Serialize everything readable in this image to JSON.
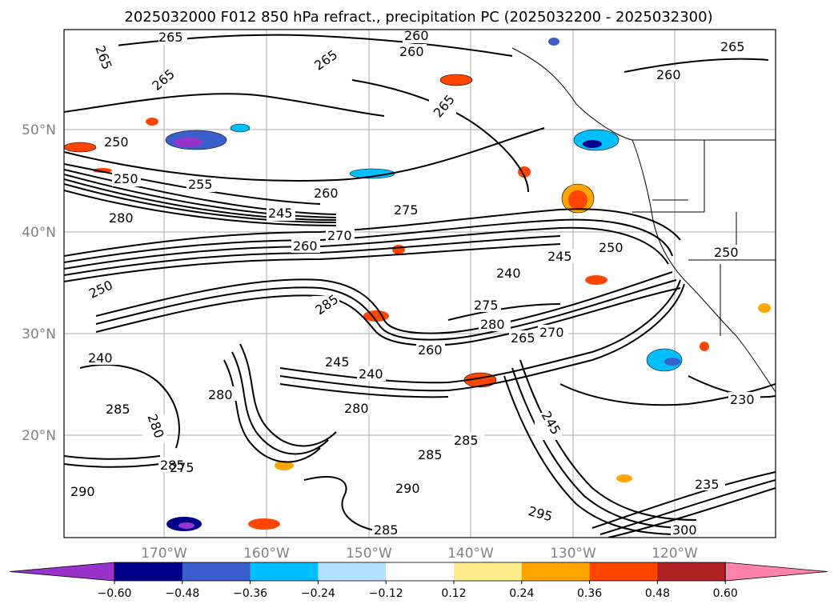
{
  "title": "2025032000 F012 850 hPa refract., precipitation PC (2025032200 - 2025032300)",
  "map": {
    "lon_labels": [
      "170°W",
      "160°W",
      "150°W",
      "140°W",
      "130°W",
      "120°W"
    ],
    "lat_labels": [
      "50°N",
      "40°N",
      "30°N",
      "20°N"
    ],
    "grid": true,
    "contour_labels": [
      {
        "text": "265"
      },
      {
        "text": "260"
      },
      {
        "text": "265"
      },
      {
        "text": "265"
      },
      {
        "text": "260"
      },
      {
        "text": "265"
      },
      {
        "text": "265"
      },
      {
        "text": "260"
      },
      {
        "text": "265"
      },
      {
        "text": "250"
      },
      {
        "text": "250"
      },
      {
        "text": "255"
      },
      {
        "text": "260"
      },
      {
        "text": "245"
      },
      {
        "text": "275"
      },
      {
        "text": "280"
      },
      {
        "text": "270"
      },
      {
        "text": "260"
      },
      {
        "text": "245"
      },
      {
        "text": "250"
      },
      {
        "text": "240"
      },
      {
        "text": "250"
      },
      {
        "text": "250"
      },
      {
        "text": "275"
      },
      {
        "text": "280"
      },
      {
        "text": "285"
      },
      {
        "text": "285"
      },
      {
        "text": "280"
      },
      {
        "text": "240"
      },
      {
        "text": "260"
      },
      {
        "text": "245"
      },
      {
        "text": "265"
      },
      {
        "text": "270"
      },
      {
        "text": "240"
      },
      {
        "text": "280"
      },
      {
        "text": "280"
      },
      {
        "text": "285"
      },
      {
        "text": "245"
      },
      {
        "text": "230"
      },
      {
        "text": "285"
      },
      {
        "text": "285"
      },
      {
        "text": "290"
      },
      {
        "text": "275"
      },
      {
        "text": "235"
      },
      {
        "text": "295"
      },
      {
        "text": "290"
      },
      {
        "text": "300"
      },
      {
        "text": "285"
      }
    ]
  },
  "colorbar": {
    "ticks": [
      "−0.60",
      "−0.48",
      "−0.36",
      "−0.24",
      "−0.12",
      "0.12",
      "0.24",
      "0.36",
      "0.48",
      "0.60"
    ],
    "colors": [
      "#9933cc",
      "#00008b",
      "#3a5fcd",
      "#00bfff",
      "#b0e2ff",
      "#ffffff",
      "#ffec8b",
      "#ffa500",
      "#ff4500",
      "#b22222",
      "#ff82ab"
    ]
  }
}
